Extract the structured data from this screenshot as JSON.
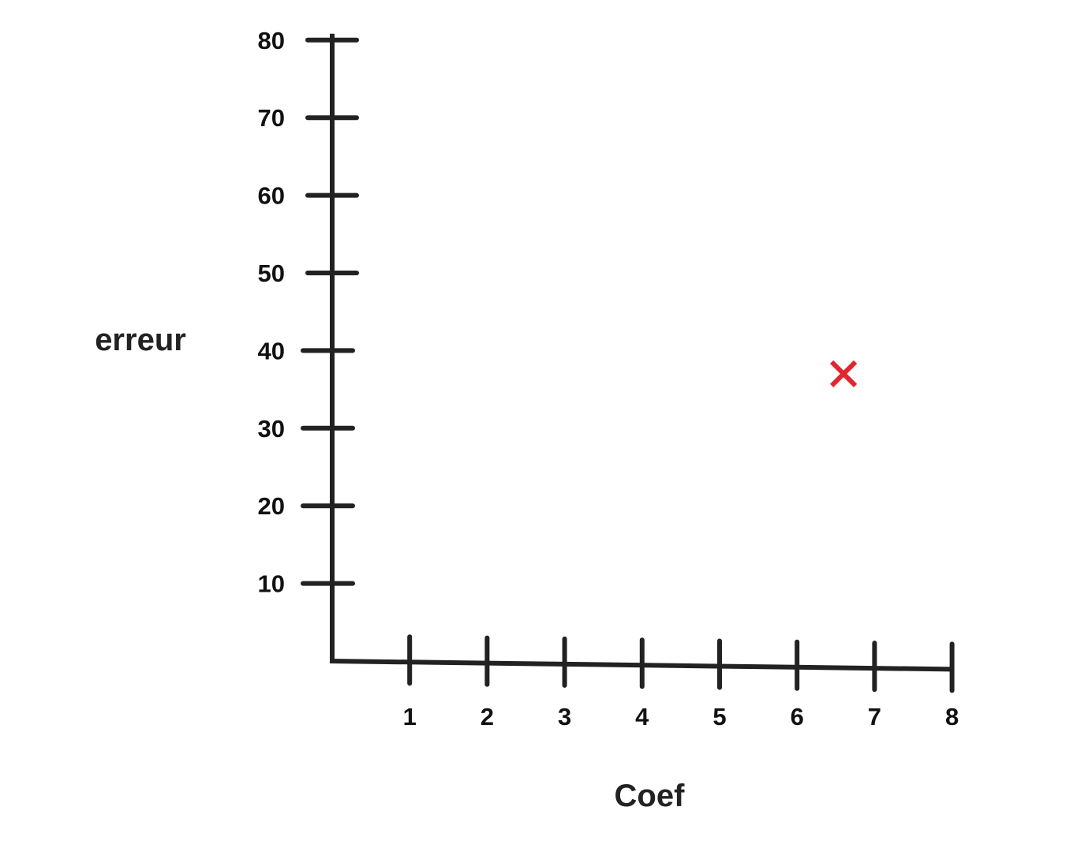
{
  "chart_data": {
    "type": "scatter",
    "xlabel": "Coef",
    "ylabel": "erreur",
    "xlim": [
      0,
      8
    ],
    "ylim": [
      0,
      80
    ],
    "x_ticks": [
      "1",
      "2",
      "3",
      "4",
      "5",
      "6",
      "7",
      "8"
    ],
    "y_ticks": [
      "10",
      "20",
      "30",
      "40",
      "50",
      "60",
      "70",
      "80"
    ],
    "grid": false,
    "series": [
      {
        "marker": "x",
        "color": "#e0262f",
        "points": [
          {
            "x": 6.6,
            "y": 37
          }
        ]
      }
    ],
    "axis_color": "#222222"
  }
}
